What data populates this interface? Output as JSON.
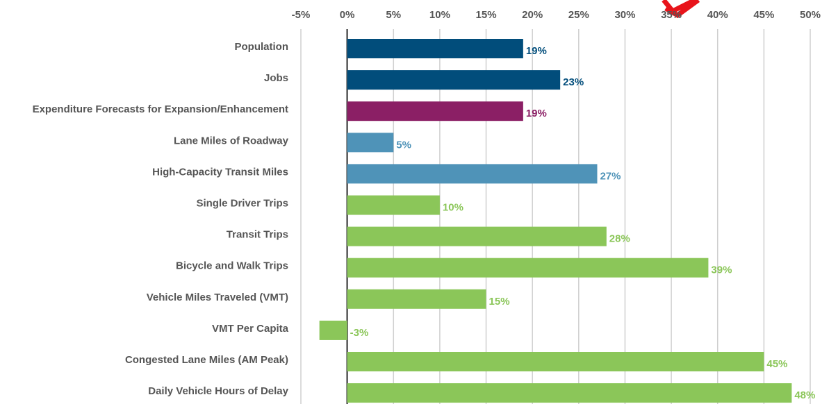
{
  "chart_data": {
    "type": "hbar",
    "categories": [
      "Population",
      "Jobs",
      "Expenditure Forecasts for Expansion/Enhancement",
      "Lane Miles of Roadway",
      "High-Capacity Transit Miles",
      "Single Driver Trips",
      "Transit Trips",
      "Bicycle and Walk Trips",
      "Vehicle Miles Traveled (VMT)",
      "VMT Per Capita",
      "Congested Lane Miles (AM Peak)",
      "Daily Vehicle Hours of Delay"
    ],
    "values": [
      19,
      23,
      19,
      5,
      27,
      10,
      28,
      39,
      15,
      -3,
      45,
      48
    ],
    "value_labels": [
      "19%",
      "23%",
      "19%",
      "5%",
      "27%",
      "10%",
      "28%",
      "39%",
      "15%",
      "-3%",
      "45%",
      "48%"
    ],
    "colors": [
      "#014d7b",
      "#014d7b",
      "#8b1f65",
      "#4f93b8",
      "#4f93b8",
      "#8bc659",
      "#8bc659",
      "#8bc659",
      "#8bc659",
      "#8bc659",
      "#8bc659",
      "#8bc659"
    ],
    "xlim": [
      -5,
      50
    ],
    "xticks": [
      {
        "value": -5,
        "label": "-5%"
      },
      {
        "value": 0,
        "label": "0%"
      },
      {
        "value": 5,
        "label": "5%"
      },
      {
        "value": 10,
        "label": "10%"
      },
      {
        "value": 15,
        "label": "15%"
      },
      {
        "value": 20,
        "label": "20%"
      },
      {
        "value": 25,
        "label": "25%"
      },
      {
        "value": 30,
        "label": "30%"
      },
      {
        "value": 35,
        "label": "35%"
      },
      {
        "value": 40,
        "label": "40%"
      },
      {
        "value": 45,
        "label": "45%"
      },
      {
        "value": 50,
        "label": "50%"
      }
    ],
    "grid": true
  }
}
